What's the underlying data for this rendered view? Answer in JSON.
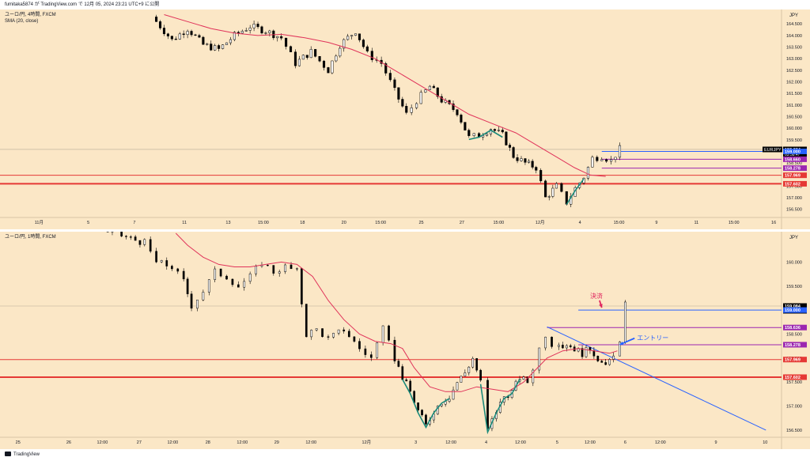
{
  "header": {
    "text": "fumitaka5874 が TradingView.com で 12月 05, 2024 23:21 UTC+9 に公開"
  },
  "footer": {
    "brand": "TradingView"
  },
  "colors": {
    "background": "#fbe7c6",
    "up": "#ffffff",
    "down": "#000000",
    "sma": "#e0335a",
    "sma_green": "#1a8a7a",
    "red_line": "#e53935",
    "purple_line": "#9c27b0",
    "blue_line": "#2962ff",
    "ann_red": "#e0245e",
    "ann_blue": "#2962ff"
  },
  "chart_data": [
    {
      "type": "candlestick",
      "title": "ユーロ/円, 4時間, FXCM",
      "subtitle": "SMA (20, close)",
      "currency": "JPY",
      "yticks": [
        156.5,
        157.0,
        157.5,
        158.0,
        158.5,
        159.0,
        159.5,
        160.0,
        160.5,
        161.0,
        161.5,
        162.0,
        162.5,
        163.0,
        163.5,
        164.0,
        164.5
      ],
      "ylim": [
        156.15,
        164.95
      ],
      "xlim": [
        0,
        100
      ],
      "xticks": [
        {
          "x": 5.0,
          "label": "11月"
        },
        {
          "x": 11.3,
          "label": "5"
        },
        {
          "x": 17.2,
          "label": "7"
        },
        {
          "x": 23.6,
          "label": "11"
        },
        {
          "x": 29.2,
          "label": "13"
        },
        {
          "x": 33.7,
          "label": "15:00"
        },
        {
          "x": 38.7,
          "label": "18"
        },
        {
          "x": 44.0,
          "label": "20"
        },
        {
          "x": 48.7,
          "label": "15:00"
        },
        {
          "x": 53.9,
          "label": "25"
        },
        {
          "x": 59.1,
          "label": "27"
        },
        {
          "x": 63.8,
          "label": "15:00"
        },
        {
          "x": 69.1,
          "label": "12月"
        },
        {
          "x": 74.2,
          "label": "4"
        },
        {
          "x": 79.2,
          "label": "15:00"
        },
        {
          "x": 84.0,
          "label": "9"
        },
        {
          "x": 89.1,
          "label": "11"
        },
        {
          "x": 93.9,
          "label": "15:00"
        },
        {
          "x": 99.0,
          "label": "16"
        }
      ],
      "price_labels": [
        {
          "value": 159.084,
          "text": "159.084",
          "sub": "03:38:47",
          "bg": "#000000",
          "tag": "EURJPY"
        },
        {
          "value": 159.0,
          "text": "159.000",
          "bg": "#2962ff"
        },
        {
          "value": 158.66,
          "text": "158.660",
          "bg": "#9c27b0"
        },
        {
          "value": 158.278,
          "text": "158.278",
          "bg": "#9c27b0"
        },
        {
          "value": 157.969,
          "text": "157.969",
          "bg": "#e53935"
        },
        {
          "value": 157.602,
          "text": "157.602",
          "bg": "#e53935"
        }
      ],
      "hlines": [
        {
          "value": 157.969,
          "color": "#e53935",
          "x0": 0,
          "width": 1
        },
        {
          "value": 157.602,
          "color": "#e53935",
          "x0": 0,
          "width": 2
        },
        {
          "value": 159.0,
          "color": "#2962ff",
          "x0": 77.0,
          "width": 1
        },
        {
          "value": 158.66,
          "color": "#9c27b0",
          "x0": 77.0,
          "width": 1
        },
        {
          "value": 158.278,
          "color": "#9c27b0",
          "x0": 77.0,
          "width": 1
        }
      ],
      "crosshair_y": 159.084,
      "series": [
        {
          "name": "Price",
          "points": [
            [
              19.5,
              164.8
            ],
            [
              22.0,
              163.8
            ],
            [
              24.0,
              164.3
            ],
            [
              26.0,
              163.6
            ],
            [
              28.0,
              163.4
            ],
            [
              30.0,
              164.0
            ],
            [
              32.0,
              164.4
            ],
            [
              34.0,
              164.2
            ],
            [
              36.0,
              163.9
            ],
            [
              37.8,
              162.8
            ],
            [
              39.8,
              163.3
            ],
            [
              42.0,
              162.5
            ],
            [
              43.5,
              163.6
            ],
            [
              45.5,
              164.2
            ],
            [
              47.0,
              163.2
            ],
            [
              48.8,
              162.8
            ],
            [
              50.5,
              161.6
            ],
            [
              52.0,
              160.6
            ],
            [
              53.3,
              161.2
            ],
            [
              55.0,
              161.8
            ],
            [
              56.5,
              161.2
            ],
            [
              58.5,
              160.7
            ],
            [
              60.0,
              159.6
            ],
            [
              61.3,
              159.7
            ],
            [
              62.8,
              160.0
            ],
            [
              64.3,
              159.7
            ],
            [
              65.7,
              158.8
            ],
            [
              67.2,
              158.5
            ],
            [
              68.6,
              158.3
            ],
            [
              69.8,
              157.0
            ],
            [
              71.2,
              157.5
            ],
            [
              72.5,
              156.8
            ],
            [
              73.6,
              157.4
            ],
            [
              74.7,
              157.9
            ],
            [
              75.8,
              158.7
            ],
            [
              77.0,
              158.8
            ],
            [
              78.2,
              158.6
            ],
            [
              79.3,
              159.1
            ]
          ]
        },
        {
          "name": "SMA (20, close)",
          "points": [
            [
              21.0,
              164.9
            ],
            [
              24.0,
              164.6
            ],
            [
              27.0,
              164.3
            ],
            [
              30.0,
              164.1
            ],
            [
              33.0,
              164.0
            ],
            [
              36.0,
              164.05
            ],
            [
              39.0,
              163.9
            ],
            [
              42.0,
              163.7
            ],
            [
              45.0,
              163.4
            ],
            [
              48.0,
              163.0
            ],
            [
              51.0,
              162.4
            ],
            [
              54.0,
              161.8
            ],
            [
              57.0,
              161.2
            ],
            [
              60.0,
              160.6
            ],
            [
              63.0,
              160.2
            ],
            [
              66.0,
              159.8
            ],
            [
              69.0,
              159.2
            ],
            [
              71.5,
              158.7
            ],
            [
              73.5,
              158.3
            ],
            [
              75.5,
              157.98
            ],
            [
              77.5,
              157.92
            ]
          ]
        }
      ]
    },
    {
      "type": "candlestick",
      "title": "ユーロ/円, 1時間, FXCM",
      "currency": "JPY",
      "yticks": [
        156.5,
        157.0,
        157.5,
        158.0,
        158.5,
        159.0,
        159.5,
        160.0
      ],
      "ylim": [
        156.35,
        160.55
      ],
      "xlim": [
        0,
        100
      ],
      "xticks": [
        {
          "x": 2.3,
          "label": "25"
        },
        {
          "x": 8.8,
          "label": "26"
        },
        {
          "x": 13.1,
          "label": "12:00"
        },
        {
          "x": 17.8,
          "label": "27"
        },
        {
          "x": 22.1,
          "label": "12:00"
        },
        {
          "x": 26.6,
          "label": "28"
        },
        {
          "x": 31.0,
          "label": "12:00"
        },
        {
          "x": 35.4,
          "label": "29"
        },
        {
          "x": 39.8,
          "label": "12:00"
        },
        {
          "x": 46.9,
          "label": "12月"
        },
        {
          "x": 53.2,
          "label": "3"
        },
        {
          "x": 57.7,
          "label": "12:00"
        },
        {
          "x": 62.2,
          "label": "4"
        },
        {
          "x": 66.6,
          "label": "12:00"
        },
        {
          "x": 71.3,
          "label": "5"
        },
        {
          "x": 75.5,
          "label": "12:00"
        },
        {
          "x": 80.0,
          "label": "6"
        },
        {
          "x": 84.5,
          "label": "12:00"
        },
        {
          "x": 91.6,
          "label": "9"
        },
        {
          "x": 97.9,
          "label": "10"
        }
      ],
      "price_labels": [
        {
          "value": 159.084,
          "text": "159.084",
          "sub": "38:47",
          "bg": "#000000"
        },
        {
          "value": 159.0,
          "text": "159.000",
          "bg": "#2962ff"
        },
        {
          "value": 158.636,
          "text": "158.636",
          "bg": "#9c27b0"
        },
        {
          "value": 158.278,
          "text": "158.278",
          "bg": "#9c27b0"
        },
        {
          "value": 157.969,
          "text": "157.969",
          "bg": "#e53935"
        },
        {
          "value": 157.602,
          "text": "157.602",
          "bg": "#e53935"
        }
      ],
      "hlines": [
        {
          "value": 157.969,
          "color": "#e53935",
          "x0": 0,
          "width": 1
        },
        {
          "value": 157.602,
          "color": "#e53935",
          "x0": 0,
          "width": 2
        },
        {
          "value": 159.0,
          "color": "#2962ff",
          "x0": 74.0,
          "width": 1
        },
        {
          "value": 158.636,
          "color": "#9c27b0",
          "x0": 70.0,
          "width": 1
        },
        {
          "value": 158.278,
          "color": "#9c27b0",
          "x0": 74.0,
          "width": 1
        }
      ],
      "trendline": {
        "x1": 70.0,
        "y1": 158.65,
        "x2": 98.0,
        "y2": 156.5
      },
      "crosshair_y": 159.084,
      "series": [
        {
          "name": "Price",
          "points": [
            [
              12.6,
              160.7
            ],
            [
              18.5,
              160.4
            ],
            [
              20.0,
              160.0
            ],
            [
              22.0,
              159.9
            ],
            [
              23.5,
              159.6
            ],
            [
              24.5,
              159.1
            ],
            [
              26.0,
              159.4
            ],
            [
              27.5,
              159.8
            ],
            [
              29.0,
              159.7
            ],
            [
              30.5,
              159.5
            ],
            [
              32.0,
              159.7
            ],
            [
              33.5,
              160.0
            ],
            [
              35.0,
              159.8
            ],
            [
              36.5,
              159.9
            ],
            [
              38.0,
              159.8
            ],
            [
              39.2,
              158.5
            ],
            [
              40.5,
              158.6
            ],
            [
              42.0,
              158.4
            ],
            [
              44.0,
              158.6
            ],
            [
              46.0,
              158.2
            ],
            [
              47.5,
              158.0
            ],
            [
              49.0,
              158.6
            ],
            [
              50.5,
              158.0
            ],
            [
              51.5,
              157.6
            ],
            [
              52.5,
              157.3
            ],
            [
              53.5,
              156.9
            ],
            [
              54.5,
              156.6
            ],
            [
              55.5,
              156.9
            ],
            [
              56.5,
              157.1
            ],
            [
              57.5,
              157.2
            ],
            [
              58.5,
              157.5
            ],
            [
              59.5,
              157.7
            ],
            [
              60.5,
              158.0
            ],
            [
              61.5,
              157.5
            ],
            [
              62.4,
              156.5
            ],
            [
              63.5,
              156.9
            ],
            [
              64.5,
              157.2
            ],
            [
              65.5,
              157.3
            ],
            [
              66.5,
              157.6
            ],
            [
              67.5,
              157.5
            ],
            [
              68.2,
              157.8
            ],
            [
              69.0,
              158.2
            ],
            [
              69.8,
              158.5
            ],
            [
              70.6,
              158.3
            ],
            [
              71.5,
              158.2
            ],
            [
              72.5,
              158.3
            ],
            [
              73.5,
              158.2
            ],
            [
              74.5,
              158.1
            ],
            [
              75.5,
              158.2
            ],
            [
              76.5,
              158.0
            ],
            [
              77.5,
              157.8
            ],
            [
              78.5,
              158.1
            ],
            [
              79.3,
              158.3
            ],
            [
              80.0,
              159.1
            ]
          ]
        },
        {
          "name": "SMA",
          "points": [
            [
              22.5,
              160.6
            ],
            [
              24.0,
              160.35
            ],
            [
              26.0,
              160.1
            ],
            [
              28.0,
              159.95
            ],
            [
              30.0,
              159.9
            ],
            [
              32.0,
              159.9
            ],
            [
              34.0,
              159.95
            ],
            [
              36.0,
              160.0
            ],
            [
              38.0,
              159.95
            ],
            [
              40.0,
              159.7
            ],
            [
              42.0,
              159.2
            ],
            [
              44.0,
              158.8
            ],
            [
              46.0,
              158.5
            ],
            [
              48.0,
              158.35
            ],
            [
              50.0,
              158.3
            ],
            [
              51.5,
              158.2
            ],
            [
              53.0,
              157.8
            ],
            [
              55.0,
              157.4
            ],
            [
              57.0,
              157.3
            ],
            [
              59.0,
              157.3
            ],
            [
              61.0,
              157.4
            ],
            [
              63.0,
              157.35
            ],
            [
              65.0,
              157.3
            ],
            [
              67.0,
              157.5
            ],
            [
              68.5,
              157.75
            ],
            [
              70.0,
              158.0
            ],
            [
              72.0,
              158.15
            ],
            [
              74.0,
              158.2
            ],
            [
              76.0,
              158.15
            ],
            [
              78.0,
              158.1
            ],
            [
              79.0,
              158.15
            ]
          ]
        }
      ],
      "annotations": [
        {
          "label": "決済",
          "x": 75.5,
          "y": 159.25,
          "color": "#e0245e",
          "arrow_to_x": 77.0,
          "arrow_to_y": 159.05
        },
        {
          "label": "エントリー",
          "x": 81.5,
          "y": 158.38,
          "color": "#2962ff",
          "arrow_to_x": 79.3,
          "arrow_to_y": 158.28
        }
      ]
    }
  ]
}
